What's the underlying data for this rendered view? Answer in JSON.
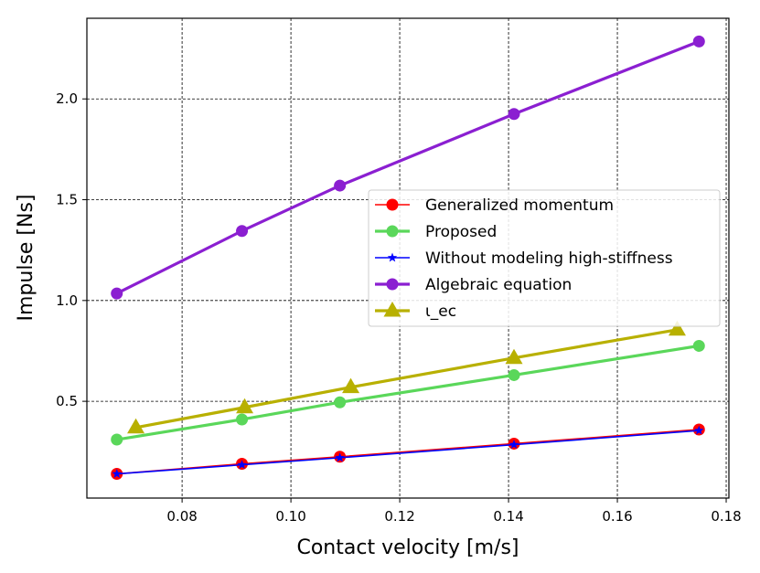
{
  "chart_data": {
    "type": "line",
    "title": "",
    "xlabel": "Contact velocity [m/s]",
    "ylabel": "Impulse [Ns]",
    "xlim": [
      0.0625,
      0.1805
    ],
    "ylim": [
      0.02,
      2.4
    ],
    "xticks": [
      0.08,
      0.1,
      0.12,
      0.14,
      0.16,
      0.18
    ],
    "xtick_labels": [
      "0.08",
      "0.10",
      "0.12",
      "0.14",
      "0.16",
      "0.18"
    ],
    "yticks": [
      0.5,
      1.0,
      1.5,
      2.0
    ],
    "ytick_labels": [
      "0.5",
      "1.0",
      "1.5",
      "2.0"
    ],
    "grid": true,
    "legend_position": "center-right",
    "series": [
      {
        "name": "Generalized momentum",
        "color": "#ff0000",
        "marker": "circle",
        "x": [
          0.068,
          0.091,
          0.109,
          0.141,
          0.175
        ],
        "y": [
          0.14,
          0.19,
          0.225,
          0.29,
          0.36
        ]
      },
      {
        "name": "Proposed",
        "color": "#5ad75a",
        "marker": "circle",
        "x": [
          0.068,
          0.091,
          0.109,
          0.141,
          0.175
        ],
        "y": [
          0.31,
          0.41,
          0.495,
          0.63,
          0.775
        ]
      },
      {
        "name": "Without modeling high-stiffness",
        "color": "#0000ff",
        "marker": "star",
        "x": [
          0.068,
          0.091,
          0.109,
          0.141,
          0.175
        ],
        "y": [
          0.14,
          0.185,
          0.22,
          0.285,
          0.355
        ]
      },
      {
        "name": "Algebraic equation",
        "color": "#8b1fd1",
        "marker": "circle",
        "x": [
          0.068,
          0.091,
          0.109,
          0.141,
          0.175
        ],
        "y": [
          1.035,
          1.345,
          1.57,
          1.925,
          2.285
        ]
      },
      {
        "name": "ι_ec",
        "color": "#b8b000",
        "marker": "triangle",
        "x": [
          0.0715,
          0.0915,
          0.111,
          0.141,
          0.171
        ],
        "y": [
          0.37,
          0.47,
          0.57,
          0.715,
          0.855
        ]
      }
    ]
  }
}
